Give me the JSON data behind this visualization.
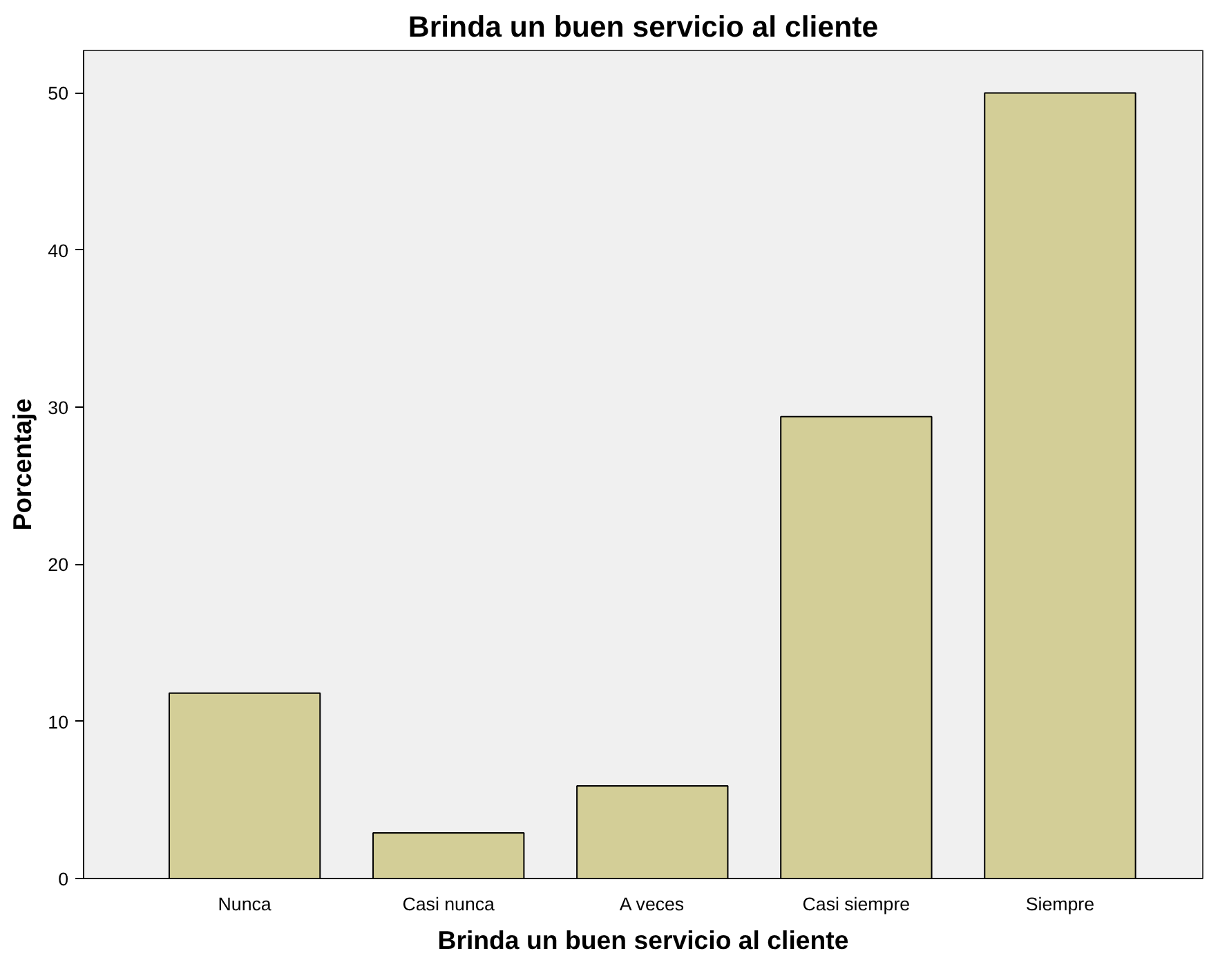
{
  "chart_data": {
    "type": "bar",
    "title": "Brinda un buen servicio al cliente",
    "xlabel": "Brinda un buen servicio al cliente",
    "ylabel": "Porcentaje",
    "categories": [
      "Nunca",
      "Casi nunca",
      "A veces",
      "Casi siempre",
      "Siempre"
    ],
    "values": [
      11.8,
      2.9,
      5.9,
      29.4,
      50
    ],
    "color": "#d3ce97",
    "ylim": [
      0,
      52.7
    ],
    "yticks": [
      0,
      10,
      20,
      30,
      40,
      50
    ],
    "grid": false
  }
}
